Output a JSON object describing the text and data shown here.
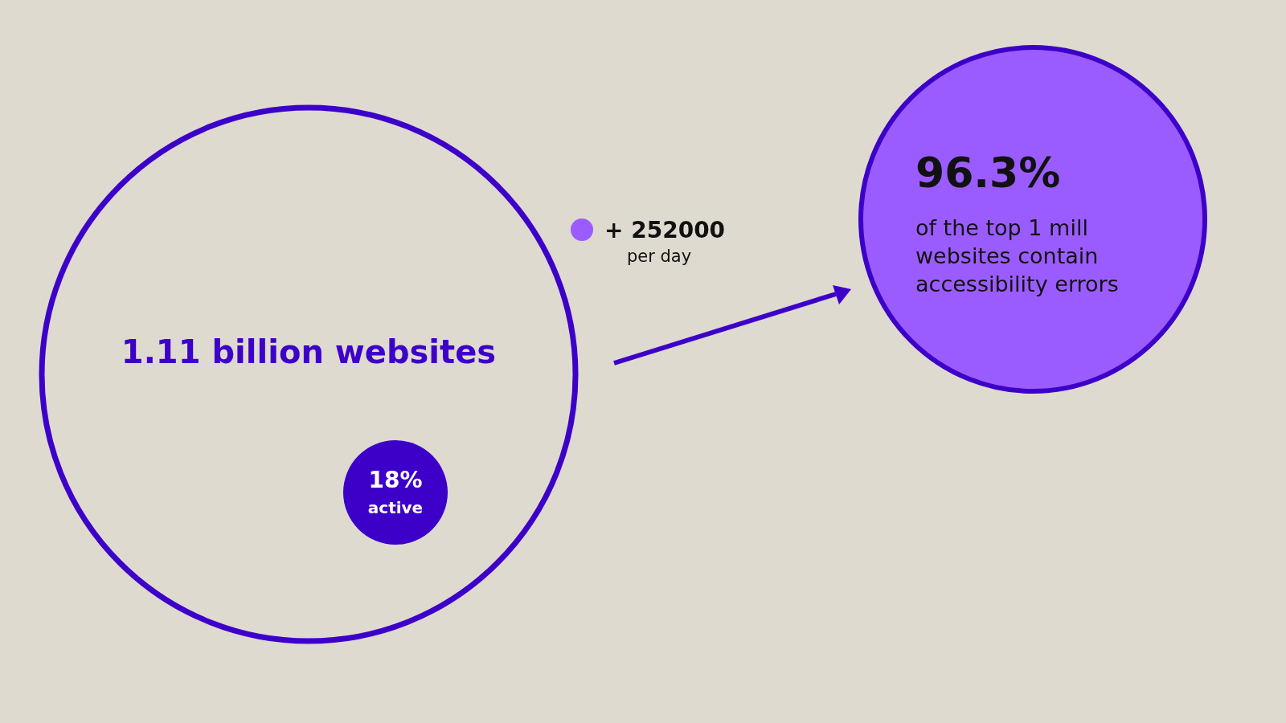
{
  "chart_data": {
    "type": "other",
    "categories": [
      "billion websites",
      "active",
      "per day",
      "of the top 1 mill websites contain accessibility errors"
    ],
    "values": [
      1.11,
      18,
      252000,
      96.3
    ],
    "value_labels": [
      "1.11",
      "18%",
      "+ 252000",
      "96.3%"
    ],
    "colors": [
      "#3d00c9",
      "#3d00c9",
      "#9b5cff",
      "#9b5cff"
    ],
    "data_labels": true
  }
}
